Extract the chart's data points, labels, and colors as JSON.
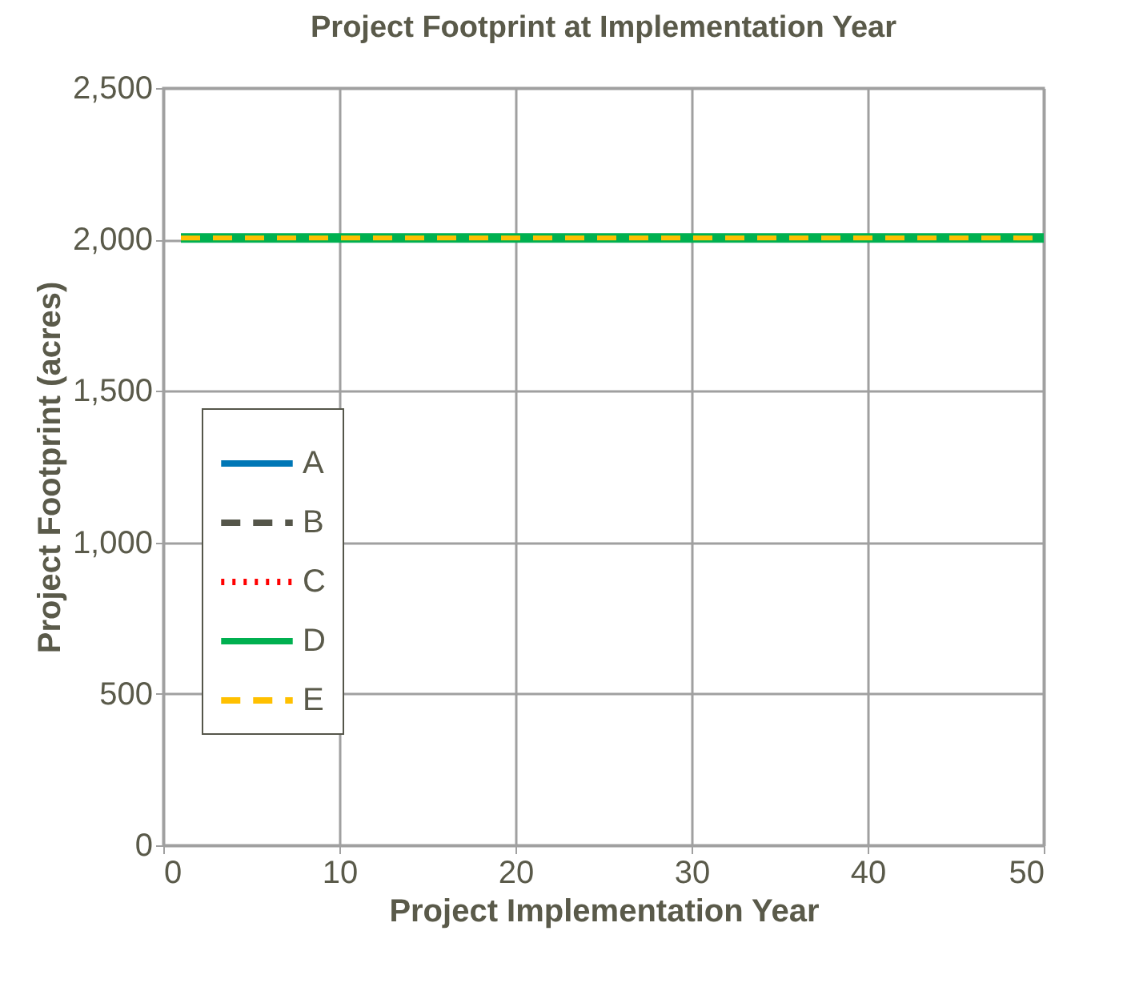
{
  "chart_data": {
    "type": "line",
    "title": "Project Footprint at Implementation Year",
    "xlabel": "Project Implementation Year",
    "ylabel": "Project Footprint (acres)",
    "x": [
      1,
      50
    ],
    "xlim": [
      0,
      50
    ],
    "xticks": [
      0,
      10,
      20,
      30,
      40,
      50
    ],
    "ylim": [
      0,
      2500
    ],
    "yticks": [
      0,
      500,
      {
        "value": 1000,
        "label": "1,000"
      },
      {
        "value": 1500,
        "label": "1,500"
      },
      {
        "value": 2000,
        "label": "2,000"
      },
      {
        "value": 2500,
        "label": "2,500"
      }
    ],
    "grid": true,
    "legend": "bottom left",
    "marker": "none",
    "series": [
      {
        "name": "A",
        "color": "#0077b6",
        "line_style": "solid",
        "values": [
          null,
          null
        ]
      },
      {
        "name": "B",
        "color": "#55564a",
        "line_style": "dashed",
        "values": [
          null,
          null
        ]
      },
      {
        "name": "C",
        "color": "#ff0000",
        "line_style": "dotted",
        "values": [
          null,
          null
        ]
      },
      {
        "name": "D",
        "color": "#00b050",
        "line_style": "solid",
        "values": [
          2005,
          2005
        ]
      },
      {
        "name": "E",
        "color": "#ffc000",
        "line_style": "dashed",
        "values": [
          2005,
          2005
        ]
      }
    ]
  }
}
